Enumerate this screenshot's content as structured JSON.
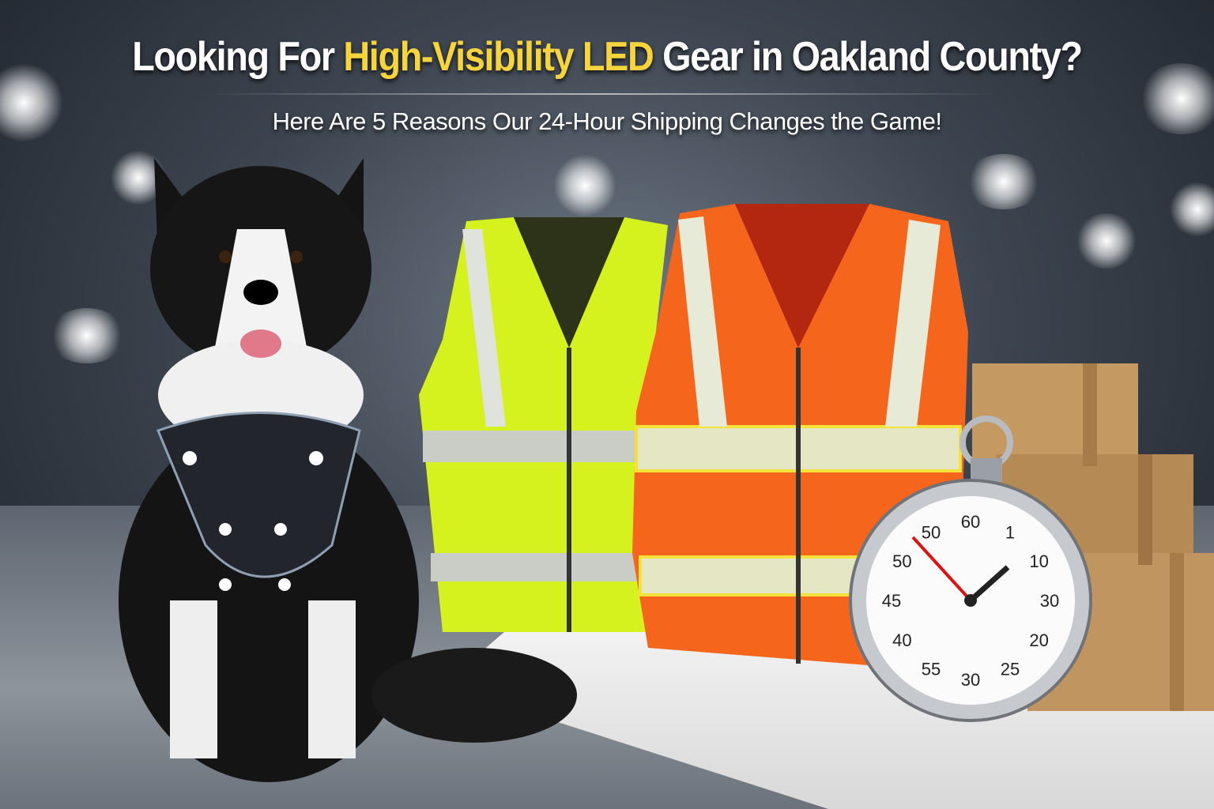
{
  "headline": {
    "part1": "Looking For ",
    "highlight": "High-Visibility LED",
    "part2": " Gear in Oakland County?"
  },
  "subheadline": "Here Are 5 Reasons Our 24-Hour Shipping Changes the Game!",
  "colors": {
    "highlight": "#f5d43c",
    "yellow_vest": "#d6f21e",
    "orange_vest": "#f5661c",
    "background": "#3d4550"
  },
  "stopwatch_numbers": [
    "60",
    "1",
    "10",
    "30",
    "20",
    "25",
    "30",
    "55",
    "40",
    "45",
    "50",
    "50"
  ],
  "icons": [
    "stopwatch-icon",
    "box-icon"
  ]
}
